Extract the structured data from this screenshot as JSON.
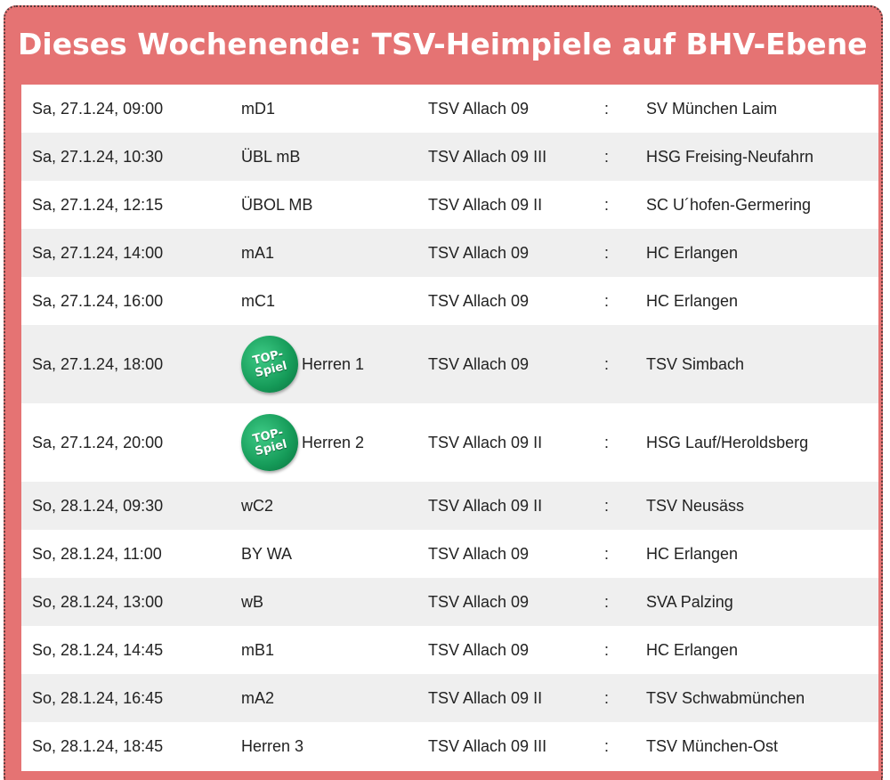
{
  "header": {
    "title": "Dieses Wochenende: TSV-Heimpiele auf BHV-Ebene"
  },
  "colors": {
    "panel_background": "#e57373",
    "row_stripe": "#efefef",
    "badge": "#159a58"
  },
  "games": [
    {
      "datetime": "Sa, 27.1.24, 09:00",
      "team": "mD1",
      "home": "TSV Allach 09",
      "sep": ":",
      "away": "SV München Laim"
    },
    {
      "datetime": "Sa, 27.1.24, 10:30",
      "team": "ÜBL mB",
      "home": "TSV Allach 09 III",
      "sep": ":",
      "away": "HSG Freising-Neufahrn"
    },
    {
      "datetime": "Sa, 27.1.24, 12:15",
      "team": "ÜBOL MB",
      "home": "TSV Allach 09 II",
      "sep": ":",
      "away": "SC U´hofen-Germering"
    },
    {
      "datetime": "Sa, 27.1.24, 14:00",
      "team": "mA1",
      "home": "TSV Allach 09",
      "sep": ":",
      "away": "HC Erlangen"
    },
    {
      "datetime": "Sa, 27.1.24, 16:00",
      "team": "mC1",
      "home": "TSV Allach 09",
      "sep": ":",
      "away": "HC Erlangen"
    },
    {
      "datetime": "Sa, 27.1.24, 18:00",
      "team": "Herren 1",
      "home": "TSV Allach 09",
      "sep": ":",
      "away": "TSV Simbach",
      "badge": {
        "line1": "TOP-",
        "line2": "Spiel"
      }
    },
    {
      "datetime": "Sa, 27.1.24, 20:00",
      "team": "Herren 2",
      "home": "TSV Allach 09 II",
      "sep": ":",
      "away": "HSG Lauf/Heroldsberg",
      "badge": {
        "line1": "TOP-",
        "line2": "Spiel"
      }
    },
    {
      "datetime": "So, 28.1.24, 09:30",
      "team": "wC2",
      "home": "TSV Allach 09 II",
      "sep": ":",
      "away": "TSV Neusäss"
    },
    {
      "datetime": "So, 28.1.24, 11:00",
      "team": "BY WA",
      "home": "TSV Allach 09",
      "sep": ":",
      "away": "HC Erlangen"
    },
    {
      "datetime": "So, 28.1.24, 13:00",
      "team": "wB",
      "home": "TSV Allach 09",
      "sep": ":",
      "away": "SVA Palzing"
    },
    {
      "datetime": "So, 28.1.24, 14:45",
      "team": "mB1",
      "home": "TSV Allach 09",
      "sep": ":",
      "away": "HC Erlangen"
    },
    {
      "datetime": "So, 28.1.24, 16:45",
      "team": "mA2",
      "home": "TSV Allach 09 II",
      "sep": ":",
      "away": "TSV Schwabmünchen"
    },
    {
      "datetime": "So, 28.1.24, 18:45",
      "team": "Herren 3",
      "home": "TSV Allach 09 III",
      "sep": ":",
      "away": "TSV München-Ost"
    }
  ]
}
